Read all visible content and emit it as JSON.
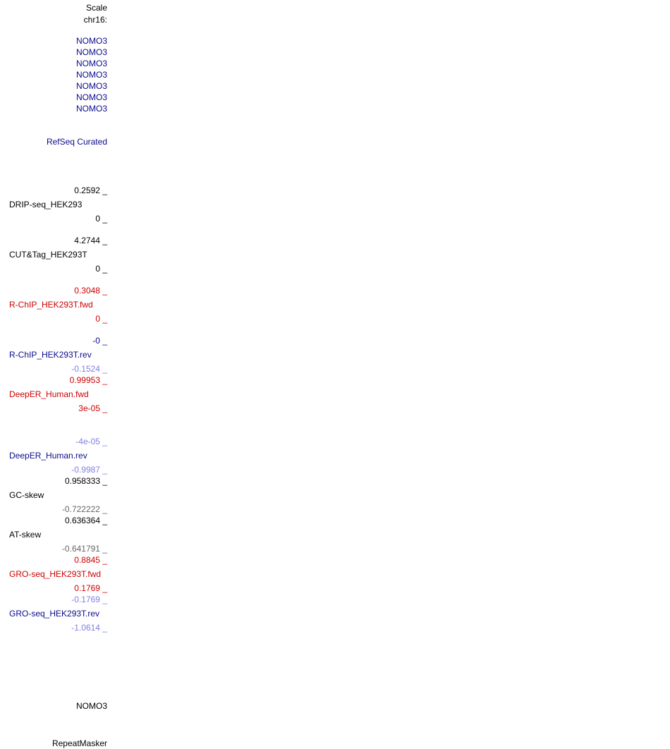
{
  "header": {
    "scale": "Scale",
    "chrom": "chr16:"
  },
  "gene_labels": [
    "NOMO3",
    "NOMO3",
    "NOMO3",
    "NOMO3",
    "NOMO3",
    "NOMO3",
    "NOMO3"
  ],
  "refseq": "RefSeq Curated",
  "tracks": [
    {
      "name": "DRIP-seq_HEK293",
      "max": "0.2592 _",
      "min": "0 _"
    },
    {
      "name": "CUT&Tag_HEK293T",
      "max": "4.2744 _",
      "min": "0 _"
    },
    {
      "name": "R-ChIP_HEK293T.fwd",
      "max": "0.3048 _",
      "min": "0 _"
    },
    {
      "name": "R-ChIP_HEK293T.rev",
      "max": "-0 _",
      "min": "-0.1524 _"
    },
    {
      "name": "DeepER_Human.fwd",
      "max": "0.99953 _",
      "min": "3e-05 _"
    },
    {
      "name": "DeepER_Human.rev",
      "max": "-4e-05 _",
      "min": "-0.9987 _"
    },
    {
      "name": "GC-skew",
      "max": "0.958333 _",
      "min": "-0.722222 _"
    },
    {
      "name": "AT-skew",
      "max": "0.636364 _",
      "min": "-0.641791 _"
    },
    {
      "name": "GRO-seq_HEK293T.fwd",
      "max": "0.8845 _",
      "min": "0.1769 _"
    },
    {
      "name": "GRO-seq_HEK293T.rev",
      "max": "-0.1769 _",
      "min": "-1.0614 _"
    }
  ],
  "bottom": {
    "gene": "NOMO3",
    "repeatmasker": "RepeatMasker"
  },
  "colors": {
    "black": "#000000",
    "dark_blue": "#0a0a8c",
    "red": "#cc0000",
    "light_blue": "#7f7fe6",
    "gray": "#666666"
  }
}
